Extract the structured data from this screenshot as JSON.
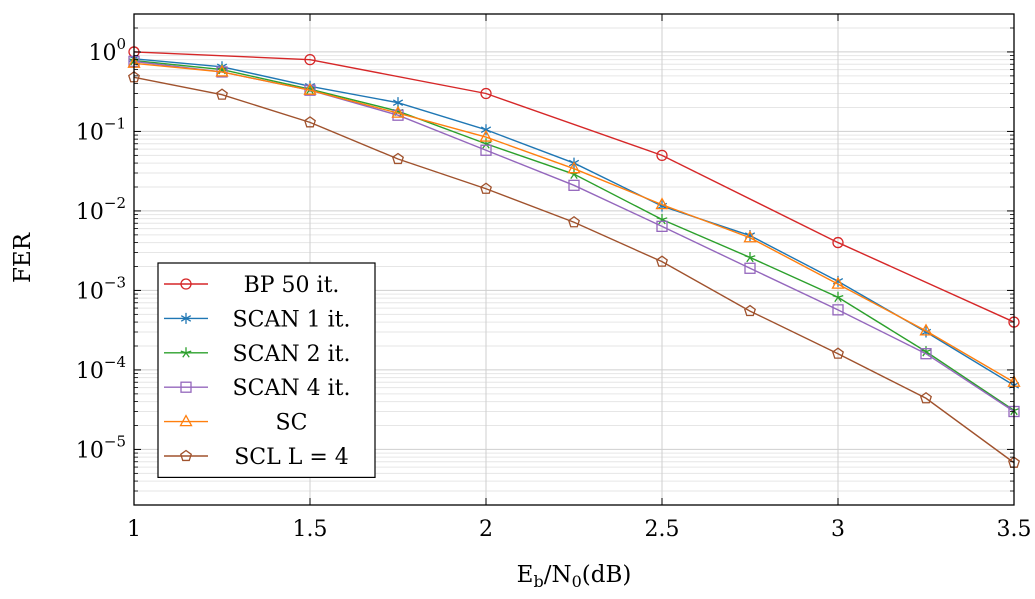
{
  "chart_data": {
    "type": "line",
    "title": "",
    "xlabel": "E",
    "xlabel_sub1": "b",
    "xlabel_mid": "/N",
    "xlabel_sub2": "0",
    "xlabel_unit": "(dB)",
    "ylabel": "FER",
    "y_scale": "log",
    "xlim": [
      1,
      3.5
    ],
    "ylim": [
      2e-06,
      3
    ],
    "grid": true,
    "legend_position": "bottom-left",
    "x_ticks": [
      1,
      1.5,
      2,
      2.5,
      3,
      3.5
    ],
    "x_tick_labels": [
      "1",
      "1.5",
      "2",
      "2.5",
      "3",
      "3.5"
    ],
    "y_tick_base": "10",
    "y_ticks": [
      1,
      0.1,
      0.01,
      0.001,
      0.0001,
      1e-05
    ],
    "y_tick_exponents": [
      "0",
      "−1",
      "−2",
      "−3",
      "−4",
      "−5"
    ],
    "series": [
      {
        "name": "BP 50 it.",
        "color": "#d62728",
        "marker": "circle",
        "x": [
          1,
          1.5,
          2,
          2.5,
          3,
          3.5
        ],
        "y": [
          1.0,
          0.8,
          0.3,
          0.05,
          0.004,
          0.0004
        ]
      },
      {
        "name": "SCAN 1 it.",
        "color": "#1f77b4",
        "marker": "asterisk",
        "x": [
          1,
          1.25,
          1.5,
          1.75,
          2,
          2.25,
          2.5,
          2.75,
          3,
          3.25,
          3.5
        ],
        "y": [
          0.82,
          0.65,
          0.37,
          0.23,
          0.105,
          0.04,
          0.0115,
          0.0049,
          0.0013,
          0.0003,
          6.4e-05
        ]
      },
      {
        "name": "SCAN 2 it.",
        "color": "#2ca02c",
        "marker": "star",
        "x": [
          1,
          1.25,
          1.5,
          1.75,
          2,
          2.25,
          2.5,
          2.75,
          3,
          3.25,
          3.5
        ],
        "y": [
          0.78,
          0.6,
          0.34,
          0.18,
          0.07,
          0.029,
          0.0078,
          0.0026,
          0.00082,
          0.00017,
          3.1e-05
        ]
      },
      {
        "name": "SCAN 4 it.",
        "color": "#9467bd",
        "marker": "square",
        "x": [
          1,
          1.25,
          1.5,
          1.75,
          2,
          2.25,
          2.5,
          2.75,
          3,
          3.25,
          3.5
        ],
        "y": [
          0.76,
          0.56,
          0.33,
          0.16,
          0.058,
          0.021,
          0.0064,
          0.0019,
          0.00057,
          0.00016,
          3e-05
        ]
      },
      {
        "name": "SC",
        "color": "#ff7f0e",
        "marker": "triangle",
        "x": [
          1,
          1.25,
          1.5,
          1.75,
          2,
          2.25,
          2.5,
          2.75,
          3,
          3.25,
          3.5
        ],
        "y": [
          0.72,
          0.56,
          0.33,
          0.17,
          0.085,
          0.034,
          0.012,
          0.0046,
          0.0012,
          0.00031,
          7e-05
        ]
      },
      {
        "name": "SCL L = 4",
        "color": "#a0522d",
        "marker": "pentagon",
        "x": [
          1,
          1.25,
          1.5,
          1.75,
          2,
          2.25,
          2.5,
          2.75,
          3,
          3.25,
          3.5
        ],
        "y": [
          0.48,
          0.29,
          0.13,
          0.045,
          0.019,
          0.0072,
          0.0023,
          0.00055,
          0.00016,
          4.4e-05,
          6.8e-06
        ]
      }
    ]
  }
}
